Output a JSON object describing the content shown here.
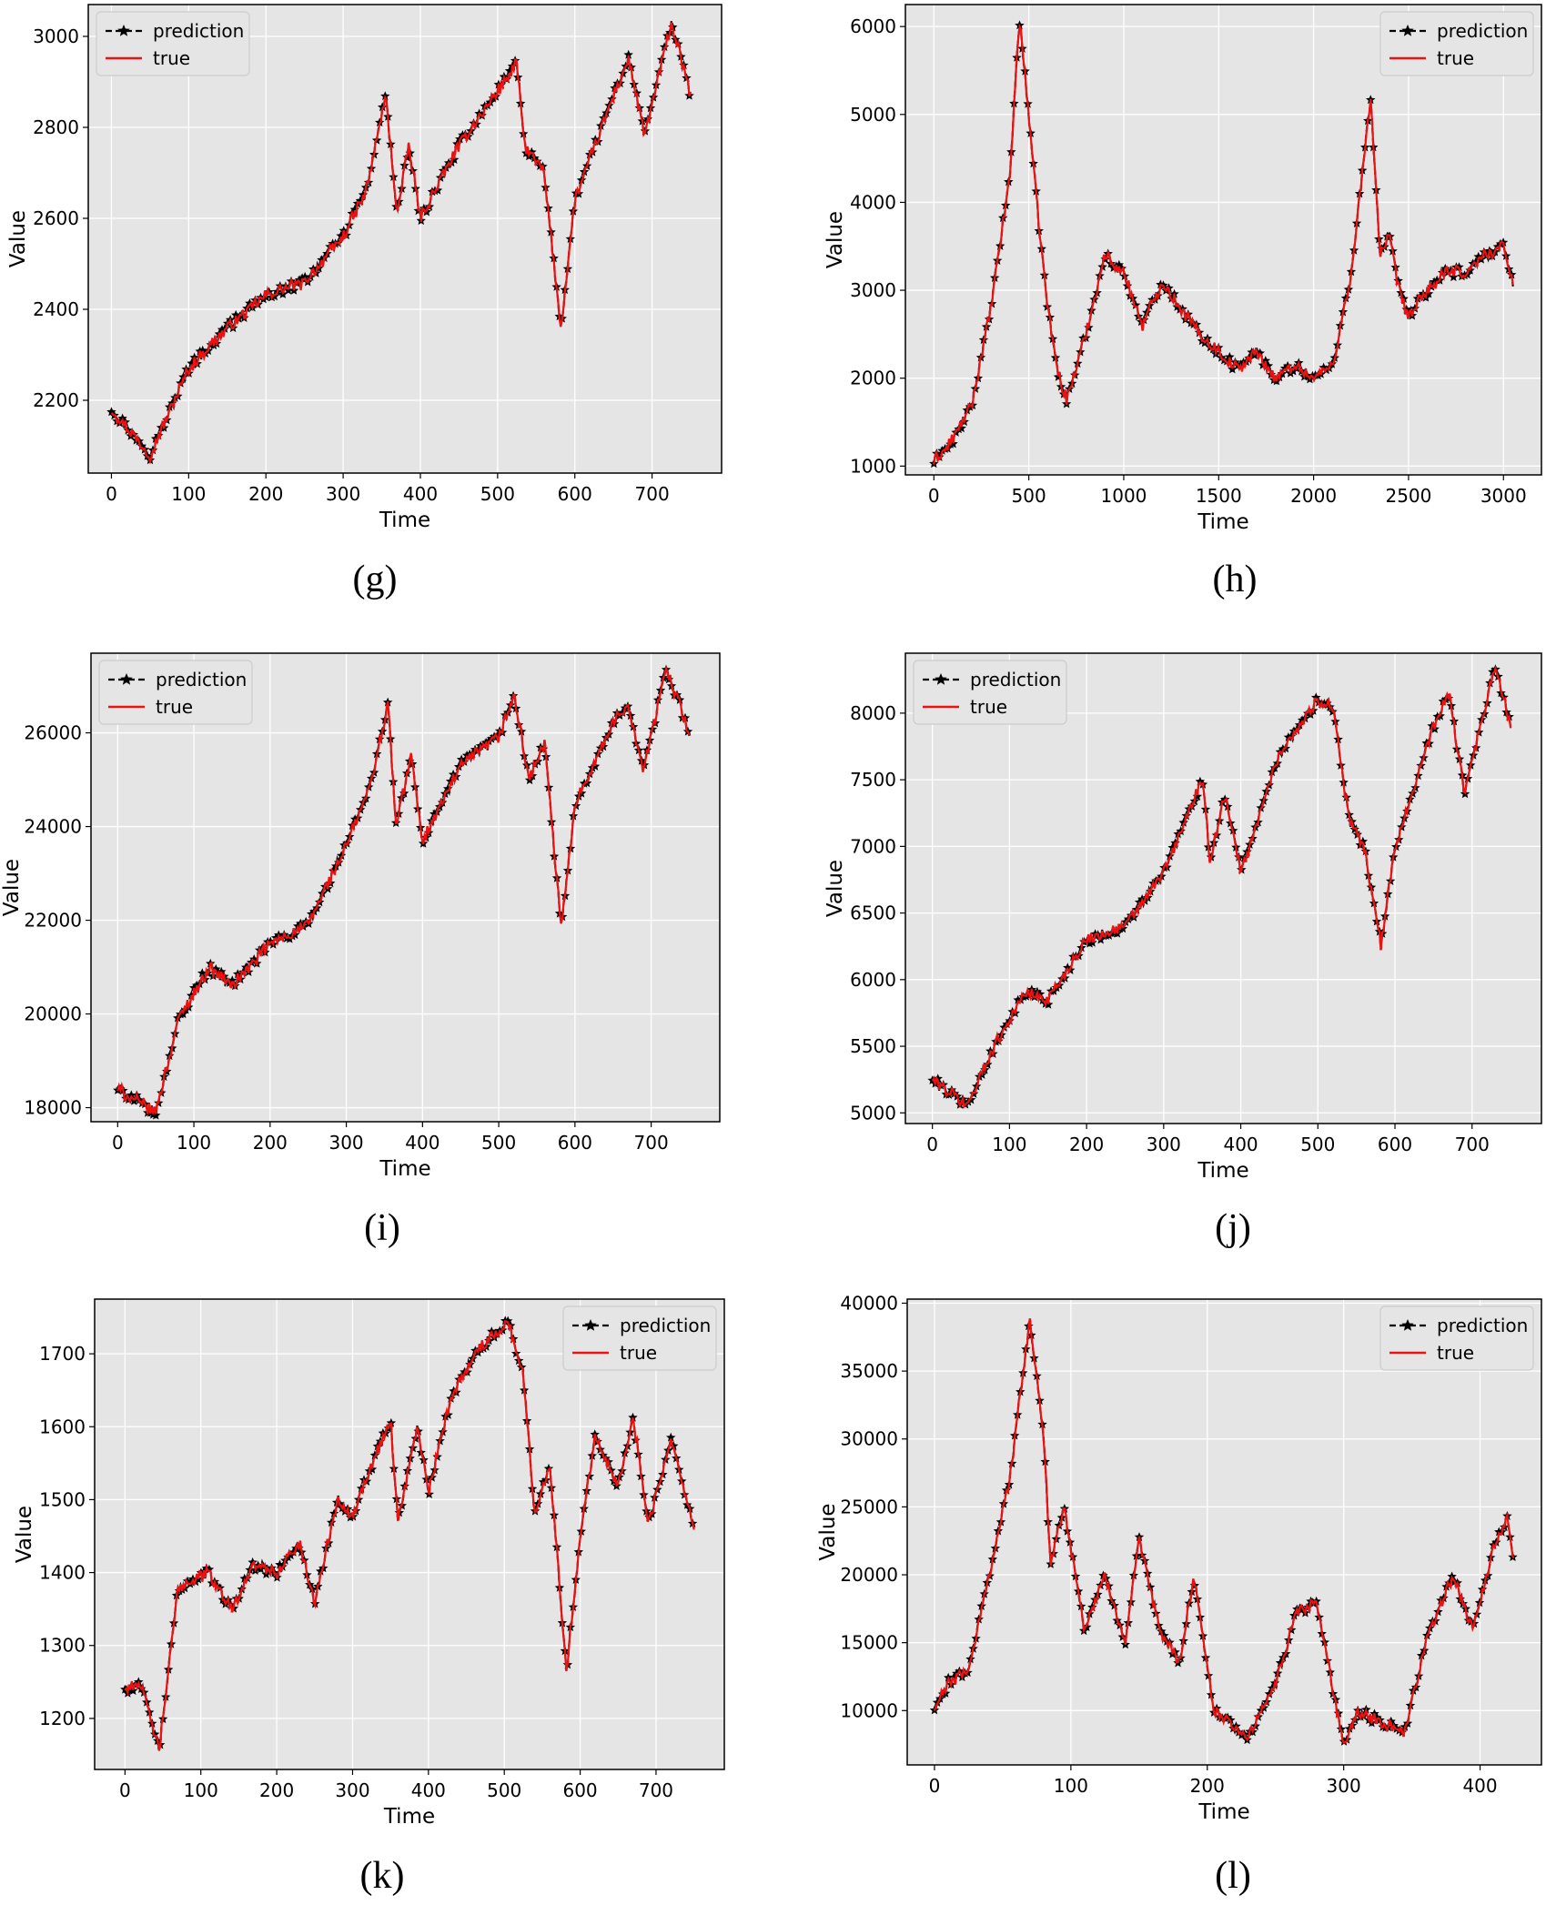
{
  "chart_data": [
    {
      "type": "line",
      "caption": "(g)",
      "xlabel": "Time",
      "ylabel": "Value",
      "xlim": [
        -30,
        790
      ],
      "ylim": [
        2040,
        3070
      ],
      "xticks": [
        0,
        100,
        200,
        300,
        400,
        500,
        600,
        700
      ],
      "yticks": [
        2200,
        2400,
        2600,
        2800,
        3000
      ],
      "legend": "top-left",
      "grid": true,
      "series": [
        {
          "name": "prediction",
          "style": "black dashed with star markers"
        },
        {
          "name": "true",
          "style": "red solid"
        }
      ],
      "x": [
        0,
        50,
        100,
        150,
        200,
        250,
        300,
        330,
        355,
        370,
        385,
        400,
        450,
        500,
        525,
        535,
        560,
        582,
        600,
        650,
        670,
        690,
        725,
        750
      ],
      "y": [
        2180,
        2080,
        2270,
        2360,
        2430,
        2460,
        2560,
        2660,
        2870,
        2610,
        2760,
        2600,
        2760,
        2880,
        2940,
        2760,
        2700,
        2360,
        2640,
        2870,
        2950,
        2780,
        3030,
        2870
      ]
    },
    {
      "type": "line",
      "caption": "(h)",
      "xlabel": "Time",
      "ylabel": "Value",
      "xlim": [
        -150,
        3200
      ],
      "ylim": [
        900,
        6250
      ],
      "xticks": [
        0,
        500,
        1000,
        1500,
        2000,
        2500,
        3000
      ],
      "yticks": [
        1000,
        2000,
        3000,
        4000,
        5000,
        6000
      ],
      "legend": "top-right",
      "grid": true,
      "series": [
        {
          "name": "prediction",
          "style": "black dashed with star markers"
        },
        {
          "name": "true",
          "style": "red solid"
        }
      ],
      "x": [
        0,
        100,
        200,
        300,
        400,
        450,
        500,
        550,
        600,
        650,
        700,
        800,
        900,
        1000,
        1100,
        1200,
        1300,
        1400,
        1500,
        1600,
        1700,
        1800,
        1900,
        2000,
        2100,
        2200,
        2300,
        2350,
        2400,
        2450,
        2500,
        2600,
        2700,
        2800,
        2900,
        3000,
        3050
      ],
      "y": [
        1050,
        1300,
        1700,
        2800,
        4300,
        6100,
        5000,
        3800,
        2800,
        2100,
        1750,
        2500,
        3400,
        3200,
        2600,
        3100,
        2800,
        2500,
        2300,
        2100,
        2300,
        2000,
        2150,
        2000,
        2150,
        3200,
        5200,
        3400,
        3600,
        3000,
        2700,
        3000,
        3200,
        3200,
        3400,
        3500,
        3100
      ]
    },
    {
      "type": "line",
      "caption": "(i)",
      "xlabel": "Time",
      "ylabel": "Value",
      "xlim": [
        -35,
        790
      ],
      "ylim": [
        17700,
        27700
      ],
      "xticks": [
        0,
        100,
        200,
        300,
        400,
        500,
        600,
        700
      ],
      "yticks": [
        18000,
        20000,
        22000,
        24000,
        26000
      ],
      "legend": "top-left",
      "grid": true,
      "series": [
        {
          "name": "prediction",
          "style": "black dashed with star markers"
        },
        {
          "name": "true",
          "style": "red solid"
        }
      ],
      "x": [
        0,
        50,
        80,
        120,
        150,
        200,
        250,
        300,
        330,
        355,
        365,
        385,
        400,
        450,
        500,
        520,
        540,
        560,
        582,
        600,
        650,
        670,
        690,
        720,
        750
      ],
      "y": [
        18400,
        17900,
        19900,
        21000,
        20600,
        21500,
        21900,
        23600,
        24800,
        26600,
        24000,
        25500,
        23700,
        25300,
        25900,
        26800,
        25000,
        25800,
        21800,
        24500,
        26200,
        26600,
        25200,
        27400,
        26000
      ]
    },
    {
      "type": "line",
      "caption": "(j)",
      "xlabel": "Time",
      "ylabel": "Value",
      "xlim": [
        -35,
        790
      ],
      "ylim": [
        4920,
        8450
      ],
      "xticks": [
        0,
        100,
        200,
        300,
        400,
        500,
        600,
        700
      ],
      "yticks": [
        5000,
        5500,
        6000,
        6500,
        7000,
        7500,
        8000
      ],
      "legend": "top-left",
      "grid": true,
      "series": [
        {
          "name": "prediction",
          "style": "black dashed with star markers"
        },
        {
          "name": "true",
          "style": "red solid"
        }
      ],
      "x": [
        0,
        45,
        80,
        120,
        150,
        200,
        250,
        300,
        350,
        360,
        380,
        400,
        450,
        500,
        520,
        540,
        560,
        582,
        600,
        650,
        670,
        690,
        730,
        750
      ],
      "y": [
        5250,
        5050,
        5500,
        5900,
        5850,
        6300,
        6400,
        6800,
        7500,
        6900,
        7400,
        6800,
        7700,
        8100,
        8050,
        7200,
        7000,
        6250,
        7000,
        7900,
        8150,
        7400,
        8350,
        7900
      ]
    },
    {
      "type": "line",
      "caption": "(k)",
      "xlabel": "Time",
      "ylabel": "Value",
      "xlim": [
        -40,
        790
      ],
      "ylim": [
        1130,
        1775
      ],
      "xticks": [
        0,
        100,
        200,
        300,
        400,
        500,
        600,
        700
      ],
      "yticks": [
        1200,
        1300,
        1400,
        1500,
        1600,
        1700
      ],
      "legend": "top-right",
      "grid": true,
      "series": [
        {
          "name": "prediction",
          "style": "black dashed with star markers"
        },
        {
          "name": "true",
          "style": "red solid"
        }
      ],
      "x": [
        0,
        20,
        45,
        70,
        110,
        140,
        170,
        200,
        230,
        250,
        280,
        300,
        330,
        350,
        360,
        385,
        400,
        430,
        460,
        505,
        525,
        540,
        560,
        582,
        600,
        620,
        650,
        670,
        690,
        720,
        750
      ],
      "y": [
        1240,
        1250,
        1155,
        1380,
        1400,
        1350,
        1410,
        1400,
        1440,
        1360,
        1500,
        1480,
        1560,
        1610,
        1470,
        1600,
        1510,
        1640,
        1700,
        1745,
        1670,
        1480,
        1550,
        1265,
        1450,
        1590,
        1520,
        1610,
        1470,
        1580,
        1460
      ]
    },
    {
      "type": "line",
      "caption": "(l)",
      "xlabel": "Time",
      "ylabel": "Value",
      "xlim": [
        -20,
        445
      ],
      "ylim": [
        6000,
        40300
      ],
      "xticks": [
        0,
        100,
        200,
        300,
        400
      ],
      "yticks": [
        10000,
        15000,
        20000,
        25000,
        30000,
        35000,
        40000
      ],
      "legend": "top-right",
      "grid": true,
      "series": [
        {
          "name": "prediction",
          "style": "black dashed with star markers"
        },
        {
          "name": "true",
          "style": "red solid"
        }
      ],
      "x": [
        0,
        10,
        25,
        40,
        55,
        70,
        80,
        85,
        95,
        110,
        125,
        140,
        150,
        165,
        180,
        190,
        205,
        230,
        250,
        265,
        280,
        300,
        310,
        330,
        345,
        360,
        380,
        395,
        410,
        420,
        425
      ],
      "y": [
        10000,
        12000,
        13000,
        20000,
        27000,
        38800,
        30000,
        21000,
        25000,
        16000,
        20000,
        15000,
        22500,
        16000,
        13500,
        20000,
        10000,
        8000,
        12000,
        17000,
        18000,
        7500,
        10000,
        9000,
        8500,
        15000,
        20000,
        16000,
        22000,
        24000,
        21000
      ]
    }
  ]
}
